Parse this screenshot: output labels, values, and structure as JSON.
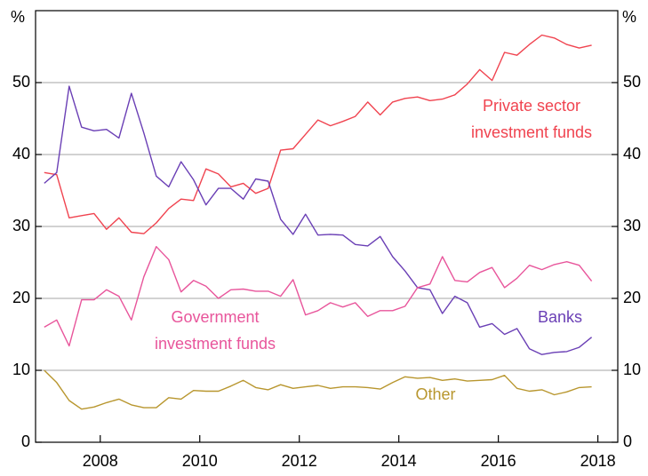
{
  "chart_data": {
    "type": "line",
    "ylabel": "%",
    "y2label": "%",
    "x": [
      2006.875,
      2007.125,
      2007.375,
      2007.625,
      2007.875,
      2008.125,
      2008.375,
      2008.625,
      2008.875,
      2009.125,
      2009.375,
      2009.625,
      2009.875,
      2010.125,
      2010.375,
      2010.625,
      2010.875,
      2011.125,
      2011.375,
      2011.625,
      2011.875,
      2012.125,
      2012.375,
      2012.625,
      2012.875,
      2013.125,
      2013.375,
      2013.625,
      2013.875,
      2014.125,
      2014.375,
      2014.625,
      2014.875,
      2015.125,
      2015.375,
      2015.625,
      2015.875,
      2016.125,
      2016.375,
      2016.625,
      2016.875,
      2017.125,
      2017.375,
      2017.625,
      2017.875
    ],
    "xlim": [
      2006.7,
      2018.4
    ],
    "xticks": [
      2008,
      2010,
      2012,
      2014,
      2016,
      2018
    ],
    "ylim": [
      0,
      60
    ],
    "yticks": [
      0,
      10,
      20,
      30,
      40,
      50
    ],
    "y2lim": [
      0,
      60
    ],
    "y2ticks": [
      0,
      10,
      20,
      30,
      40,
      50
    ],
    "grid": true,
    "series": [
      {
        "name": [
          "Private sector",
          "investment funds"
        ],
        "color": "#f0434f",
        "values": [
          37.5,
          37.2,
          31.2,
          31.5,
          31.8,
          29.6,
          31.2,
          29.2,
          29.0,
          30.5,
          32.5,
          33.8,
          33.6,
          38.0,
          37.3,
          35.5,
          36.0,
          34.6,
          35.3,
          40.6,
          40.8,
          42.8,
          44.8,
          44.0,
          44.6,
          45.3,
          47.3,
          45.5,
          47.3,
          47.8,
          48.0,
          47.5,
          47.7,
          48.3,
          49.8,
          51.8,
          50.3,
          54.2,
          53.8,
          55.3,
          56.6,
          56.2,
          55.3,
          54.8,
          55.2
        ]
      },
      {
        "name": [
          "Banks"
        ],
        "color": "#6a3fb5",
        "values": [
          36.0,
          37.5,
          49.5,
          43.8,
          43.3,
          43.5,
          42.3,
          48.5,
          43.0,
          37.0,
          35.5,
          39.0,
          36.5,
          33.0,
          35.3,
          35.3,
          33.8,
          36.6,
          36.3,
          31.0,
          28.9,
          31.7,
          28.8,
          28.9,
          28.8,
          27.5,
          27.3,
          28.6,
          25.8,
          23.8,
          21.5,
          21.2,
          17.9,
          20.3,
          19.4,
          16.0,
          16.5,
          15.0,
          15.8,
          13.0,
          12.2,
          12.5,
          12.6,
          13.2,
          14.6
        ]
      },
      {
        "name": [
          "Government",
          "investment funds"
        ],
        "color": "#e8559b",
        "values": [
          16.0,
          17.0,
          13.4,
          19.8,
          19.8,
          21.2,
          20.3,
          17.0,
          23.0,
          27.2,
          25.4,
          20.9,
          22.5,
          21.7,
          20.0,
          21.2,
          21.3,
          21.0,
          21.0,
          20.3,
          22.6,
          17.7,
          18.3,
          19.4,
          18.8,
          19.4,
          17.5,
          18.3,
          18.3,
          18.9,
          21.5,
          22.0,
          25.8,
          22.5,
          22.3,
          23.6,
          24.3,
          21.5,
          22.8,
          24.6,
          24.0,
          24.7,
          25.1,
          24.6,
          22.4
        ]
      },
      {
        "name": [
          "Other"
        ],
        "color": "#b8962e",
        "values": [
          10.0,
          8.3,
          5.8,
          4.6,
          4.9,
          5.5,
          6.0,
          5.2,
          4.8,
          4.8,
          6.2,
          6.0,
          7.2,
          7.1,
          7.1,
          7.8,
          8.6,
          7.6,
          7.3,
          8.0,
          7.5,
          7.7,
          7.9,
          7.5,
          7.7,
          7.7,
          7.6,
          7.4,
          8.3,
          9.1,
          8.9,
          9.0,
          8.6,
          8.8,
          8.5,
          8.6,
          8.7,
          9.3,
          7.5,
          7.1,
          7.3,
          6.6,
          7.0,
          7.6,
          7.7
        ]
      }
    ]
  }
}
